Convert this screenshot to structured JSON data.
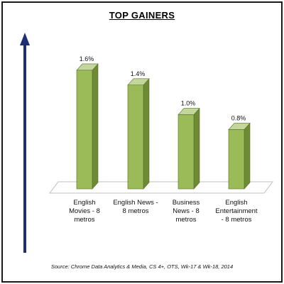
{
  "chart_data": {
    "type": "bar",
    "title": "TOP GAINERS",
    "categories": [
      [
        "English",
        "Movies - 8",
        "metros"
      ],
      [
        "English News -",
        "8 metros"
      ],
      [
        "Business",
        "News - 8",
        "metros"
      ],
      [
        "English",
        "Entertainment",
        "- 8 metros"
      ]
    ],
    "values": [
      1.6,
      1.4,
      1.0,
      0.8
    ],
    "value_labels": [
      "1.6%",
      "1.4%",
      "1.0%",
      "0.8%"
    ],
    "unit": "%",
    "ylim": [
      0,
      1.8
    ],
    "source": "Source: Chrome Data Analytics & Media, CS 4+,  OTS, Wk-17 & Wk-18, 2014",
    "colors": {
      "bar_front": "#9bbb59",
      "bar_side": "#6e8a34",
      "bar_top": "#c3d69b",
      "arrow": "#1f2f73",
      "floor": "#ffffff",
      "floor_edge": "#bfbfbf"
    }
  }
}
